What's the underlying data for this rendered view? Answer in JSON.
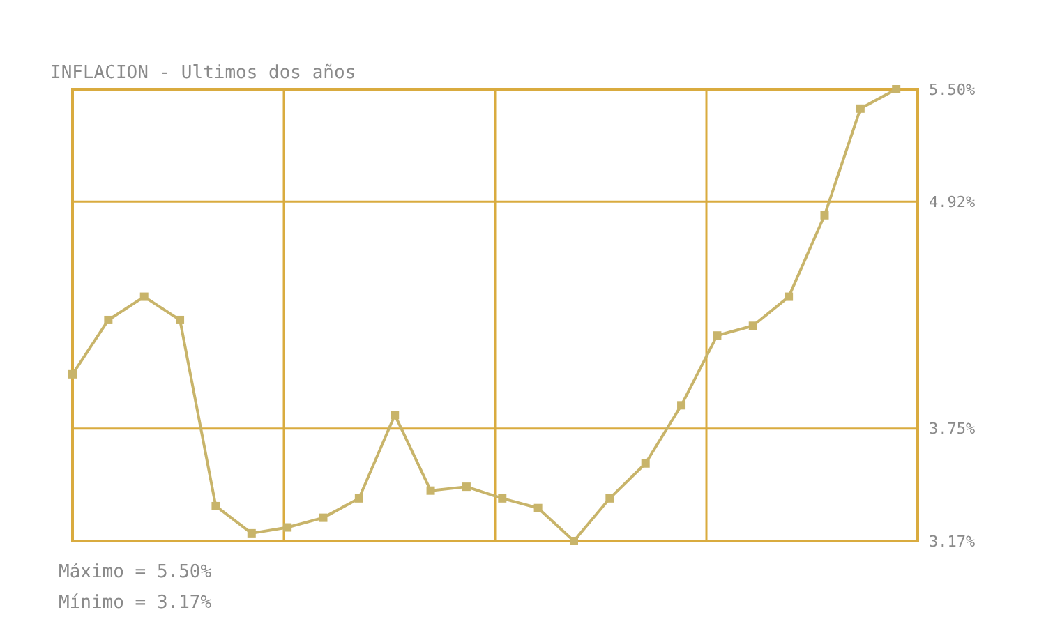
{
  "chart_data": {
    "type": "line",
    "title": "INFLACION - Ultimos dos años",
    "categories": [
      null,
      null,
      null,
      null,
      null,
      null,
      null,
      null,
      null,
      null,
      null,
      null,
      null,
      null,
      null,
      null,
      null,
      null,
      null,
      null,
      null,
      null,
      null,
      null
    ],
    "series": [
      {
        "color": "#c8b46a",
        "values": [
          4.03,
          4.31,
          4.43,
          4.31,
          3.35,
          3.21,
          3.24,
          3.29,
          3.39,
          3.82,
          3.43,
          3.45,
          3.39,
          3.34,
          3.17,
          3.39,
          3.57,
          3.87,
          4.23,
          4.28,
          4.43,
          4.85,
          5.4,
          5.5
        ]
      }
    ],
    "ylim": [
      3.17,
      5.5
    ],
    "yticks": [
      {
        "value": 3.17,
        "label": "3.17%"
      },
      {
        "value": 3.75,
        "label": "3.75%"
      },
      {
        "value": 4.92,
        "label": "4.92%"
      },
      {
        "value": 5.5,
        "label": "5.50%"
      }
    ],
    "grid": true,
    "marker": "square",
    "line_style": "solid",
    "annotations": [
      "Máximo = 5.50%",
      "Mínimo = 3.17%"
    ]
  }
}
